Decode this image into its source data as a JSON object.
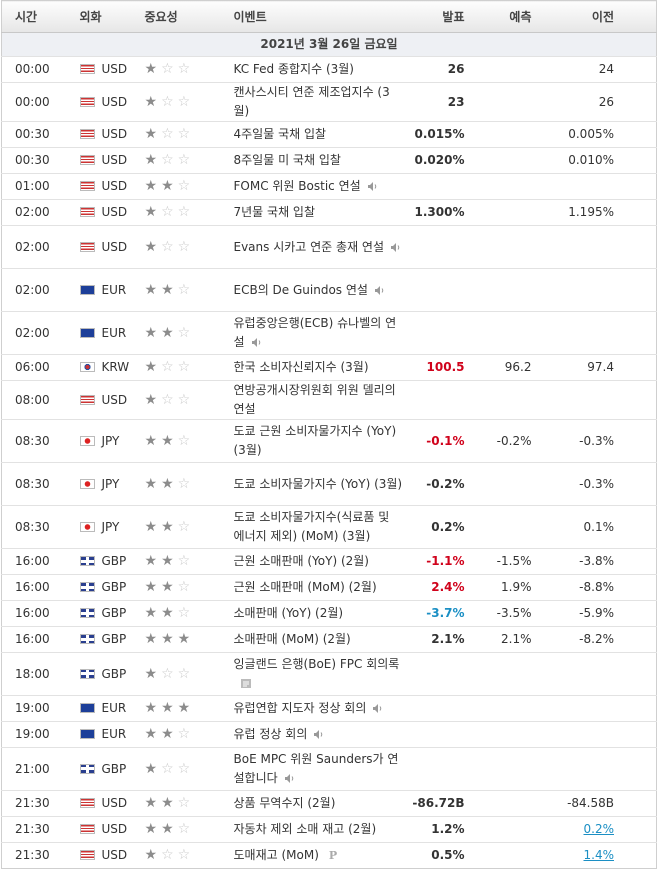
{
  "header": [
    "시간",
    "외화",
    "중요성",
    "이벤트",
    "발표",
    "예측",
    "이전"
  ],
  "date": "2021년 3월 26일 금요일",
  "rows": [
    {
      "time": "00:00",
      "currency": "USD",
      "importance": 1,
      "event": "KC Fed 종합지수 (3월)",
      "actual": "26",
      "forecast": null,
      "previous": "24"
    },
    {
      "time": "00:00",
      "currency": "USD",
      "importance": 1,
      "event": "캔사스시티 연준 제조업지수 (3월)",
      "actual": "23",
      "forecast": null,
      "previous": "26"
    },
    {
      "time": "00:30",
      "currency": "USD",
      "importance": 1,
      "event": "4주일물 국채 입찰",
      "actual": "0.015%",
      "forecast": null,
      "previous": "0.005%"
    },
    {
      "time": "00:30",
      "currency": "USD",
      "importance": 1,
      "event": "8주일물 미 국채 입찰",
      "actual": "0.020%",
      "forecast": null,
      "previous": "0.010%"
    },
    {
      "time": "01:00",
      "currency": "USD",
      "importance": 2,
      "event": "FOMC 위원 Bostic 연설",
      "icon": "speaker",
      "actual": null,
      "forecast": null,
      "previous": null
    },
    {
      "time": "02:00",
      "currency": "USD",
      "importance": 1,
      "event": "7년물 국채 입찰",
      "actual": "1.300%",
      "forecast": null,
      "previous": "1.195%"
    },
    {
      "time": "02:00",
      "currency": "USD",
      "importance": 1,
      "event": "Evans 시카고 연준 총재 연설",
      "icon": "speaker",
      "actual": null,
      "forecast": null,
      "previous": null
    },
    {
      "time": "02:00",
      "currency": "EUR",
      "importance": 2,
      "event": "ECB의 De Guindos 연설",
      "icon": "speaker",
      "actual": null,
      "forecast": null,
      "previous": null
    },
    {
      "time": "02:00",
      "currency": "EUR",
      "importance": 2,
      "event": "유럽중앙은행(ECB) 슈나벨의 연설",
      "icon": "speaker",
      "actual": null,
      "forecast": null,
      "previous": null
    },
    {
      "time": "06:00",
      "currency": "KRW",
      "importance": 1,
      "event": "한국 소비자신뢰지수 (3월)",
      "actual": "100.5",
      "actual_color": "#d0021b",
      "forecast": "96.2",
      "previous": "97.4"
    },
    {
      "time": "08:00",
      "currency": "USD",
      "importance": 1,
      "event": "연방공개시장위원회 위원 델리의 연설",
      "actual": null,
      "forecast": null,
      "previous": null
    },
    {
      "time": "08:30",
      "currency": "JPY",
      "importance": 2,
      "event": "도쿄 근원 소비자물가지수 (YoY) (3월)",
      "actual": "-0.1%",
      "actual_color": "#d0021b",
      "forecast": "-0.2%",
      "previous": "-0.3%"
    },
    {
      "time": "08:30",
      "currency": "JPY",
      "importance": 2,
      "event": "도쿄 소비자물가지수 (YoY) (3월)",
      "actual": "-0.2%",
      "forecast": null,
      "previous": "-0.3%"
    },
    {
      "time": "08:30",
      "currency": "JPY",
      "importance": 2,
      "event": "도쿄 소비자물가지수(식료품 및 에너지 제외) (MoM) (3월)",
      "actual": "0.2%",
      "forecast": null,
      "previous": "0.1%"
    },
    {
      "time": "16:00",
      "currency": "GBP",
      "importance": 2,
      "event": "근원 소매판매 (YoY) (2월)",
      "actual": "-1.1%",
      "actual_color": "#d0021b",
      "forecast": "-1.5%",
      "previous": "-3.8%"
    },
    {
      "time": "16:00",
      "currency": "GBP",
      "importance": 2,
      "event": "근원 소매판매 (MoM) (2월)",
      "actual": "2.4%",
      "actual_color": "#d0021b",
      "forecast": "1.9%",
      "previous": "-8.8%"
    },
    {
      "time": "16:00",
      "currency": "GBP",
      "importance": 2,
      "event": "소매판매 (YoY) (2월)",
      "actual": "-3.7%",
      "actual_color": "#1b8fc4",
      "forecast": "-3.5%",
      "previous": "-5.9%"
    },
    {
      "time": "16:00",
      "currency": "GBP",
      "importance": 3,
      "event": "소매판매 (MoM) (2월)",
      "actual": "2.1%",
      "forecast": "2.1%",
      "previous": "-8.2%"
    },
    {
      "time": "18:00",
      "currency": "GBP",
      "importance": 1,
      "event": "잉글랜드 은행(BoE) FPC 회의록",
      "icon": "document",
      "actual": null,
      "forecast": null,
      "previous": null
    },
    {
      "time": "19:00",
      "currency": "EUR",
      "importance": 3,
      "event": "유럽연합 지도자 정상 회의",
      "icon": "speaker",
      "actual": null,
      "forecast": null,
      "previous": null
    },
    {
      "time": "19:00",
      "currency": "EUR",
      "importance": 2,
      "event": "유럽 정상 회의",
      "icon": "speaker",
      "actual": null,
      "forecast": null,
      "previous": null
    },
    {
      "time": "21:00",
      "currency": "GBP",
      "importance": 1,
      "event": "BoE MPC 위원 Saunders가 연설합니다",
      "icon": "speaker",
      "actual": null,
      "forecast": null,
      "previous": null
    },
    {
      "time": "21:30",
      "currency": "USD",
      "importance": 2,
      "event": "상품 무역수지 (2월)",
      "actual": "-86.72B",
      "forecast": null,
      "previous": "-84.58B"
    },
    {
      "time": "21:30",
      "currency": "USD",
      "importance": 2,
      "event": "자동차 제외 소매 재고 (2월)",
      "actual": "1.2%",
      "forecast": null,
      "previous": "0.2%",
      "previous_revised": true
    },
    {
      "time": "21:30",
      "currency": "USD",
      "importance": 1,
      "event": "도매재고 (MoM)",
      "badge": "P",
      "actual": "0.5%",
      "forecast": null,
      "previous": "1.4%",
      "previous_revised": true
    }
  ]
}
